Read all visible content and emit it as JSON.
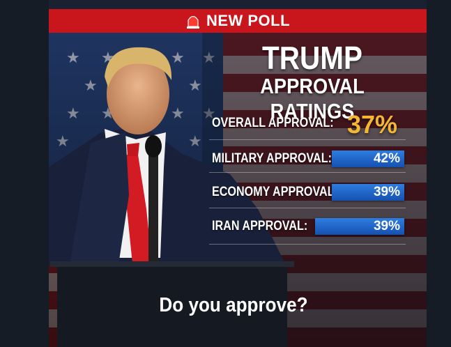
{
  "header": {
    "label": "NEW POLL"
  },
  "title": {
    "line1": "TRUMP",
    "line2": "APPROVAL RATINGS"
  },
  "rows": [
    {
      "label": "OVERALL APPROVAL:",
      "value": "37%"
    },
    {
      "label": "MILITARY APPROVAL:",
      "value": "42%"
    },
    {
      "label": "ECONOMY APPROVAL:",
      "value": "39%"
    },
    {
      "label": "IRAN APPROVAL:",
      "value": "39%"
    }
  ],
  "footer": {
    "question": "Do you approve?"
  }
}
